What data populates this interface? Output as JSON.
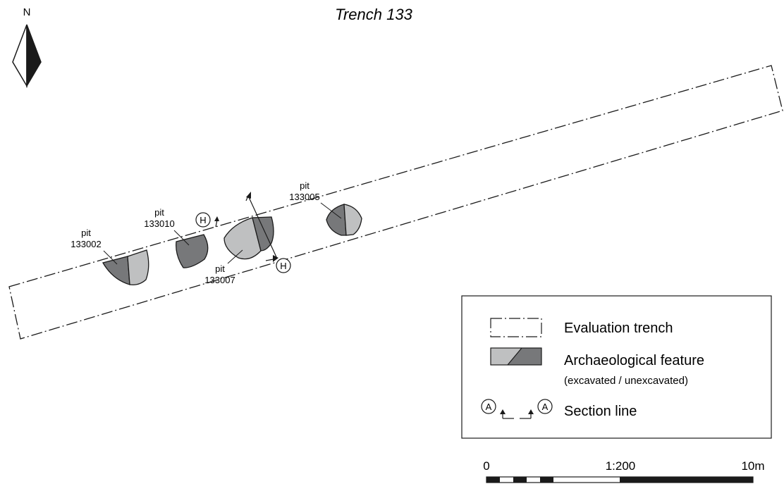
{
  "title": "Trench 133",
  "north_label": "N",
  "features": [
    {
      "type": "pit",
      "id": "133002"
    },
    {
      "type": "pit",
      "id": "133010"
    },
    {
      "type": "pit",
      "id": "133007"
    },
    {
      "type": "pit",
      "id": "133005"
    }
  ],
  "section": {
    "label": "H"
  },
  "legend": {
    "trench": "Evaluation trench",
    "feature": "Archaeological feature",
    "feature_sub": "(excavated / unexcavated)",
    "section": "Section line",
    "section_symbol": "A"
  },
  "scale": {
    "start": "0",
    "ratio": "1:200",
    "end": "10m"
  },
  "colors": {
    "excavated": "#bfc0c1",
    "unexcavated": "#77787a",
    "line": "#1a1a1a"
  }
}
